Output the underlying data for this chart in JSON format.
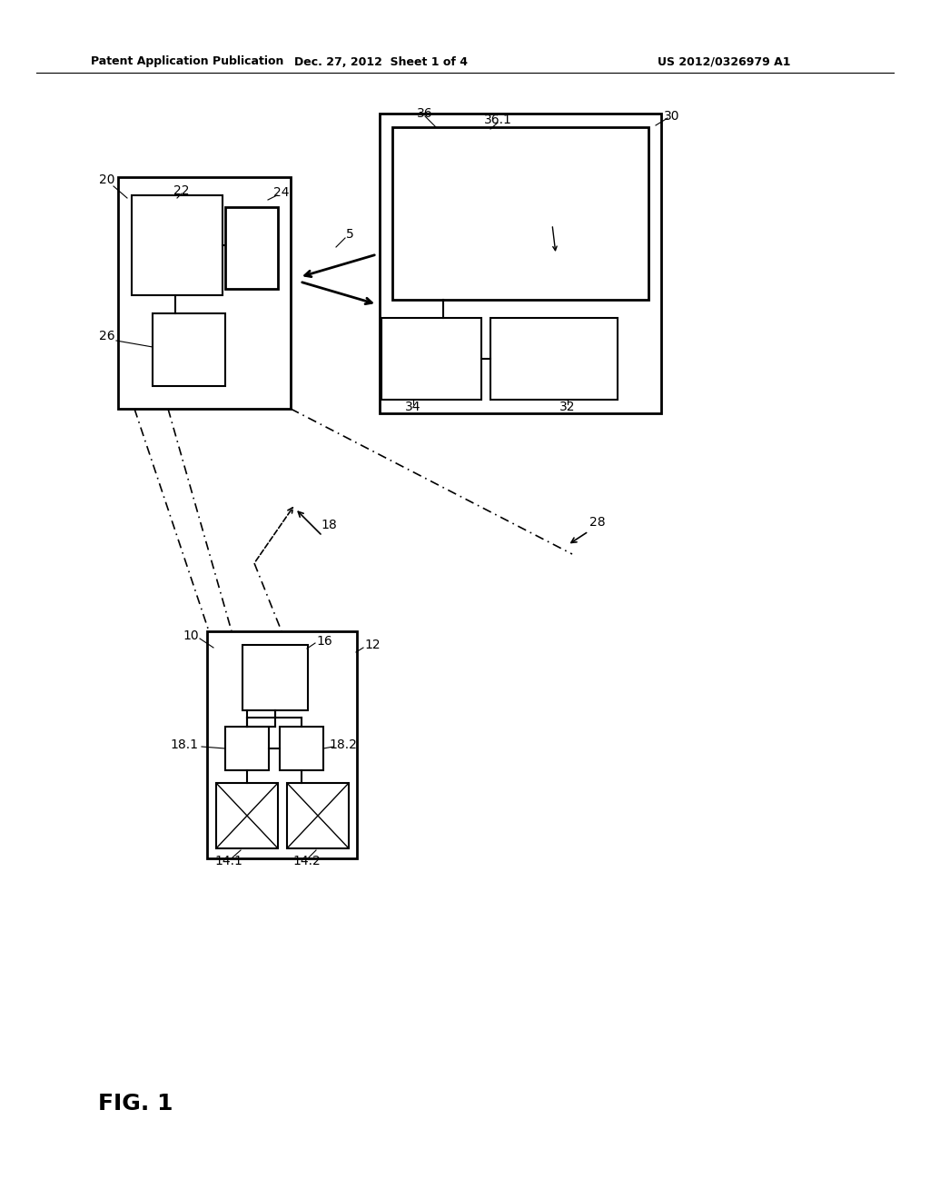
{
  "bg_color": "#ffffff",
  "header_left": "Patent Application Publication",
  "header_mid": "Dec. 27, 2012  Sheet 1 of 4",
  "header_right": "US 2012/0326979 A1",
  "fig_label": "FIG. 1",
  "header_fontsize": 9,
  "label_fontsize": 10,
  "fig_label_fontsize": 18
}
